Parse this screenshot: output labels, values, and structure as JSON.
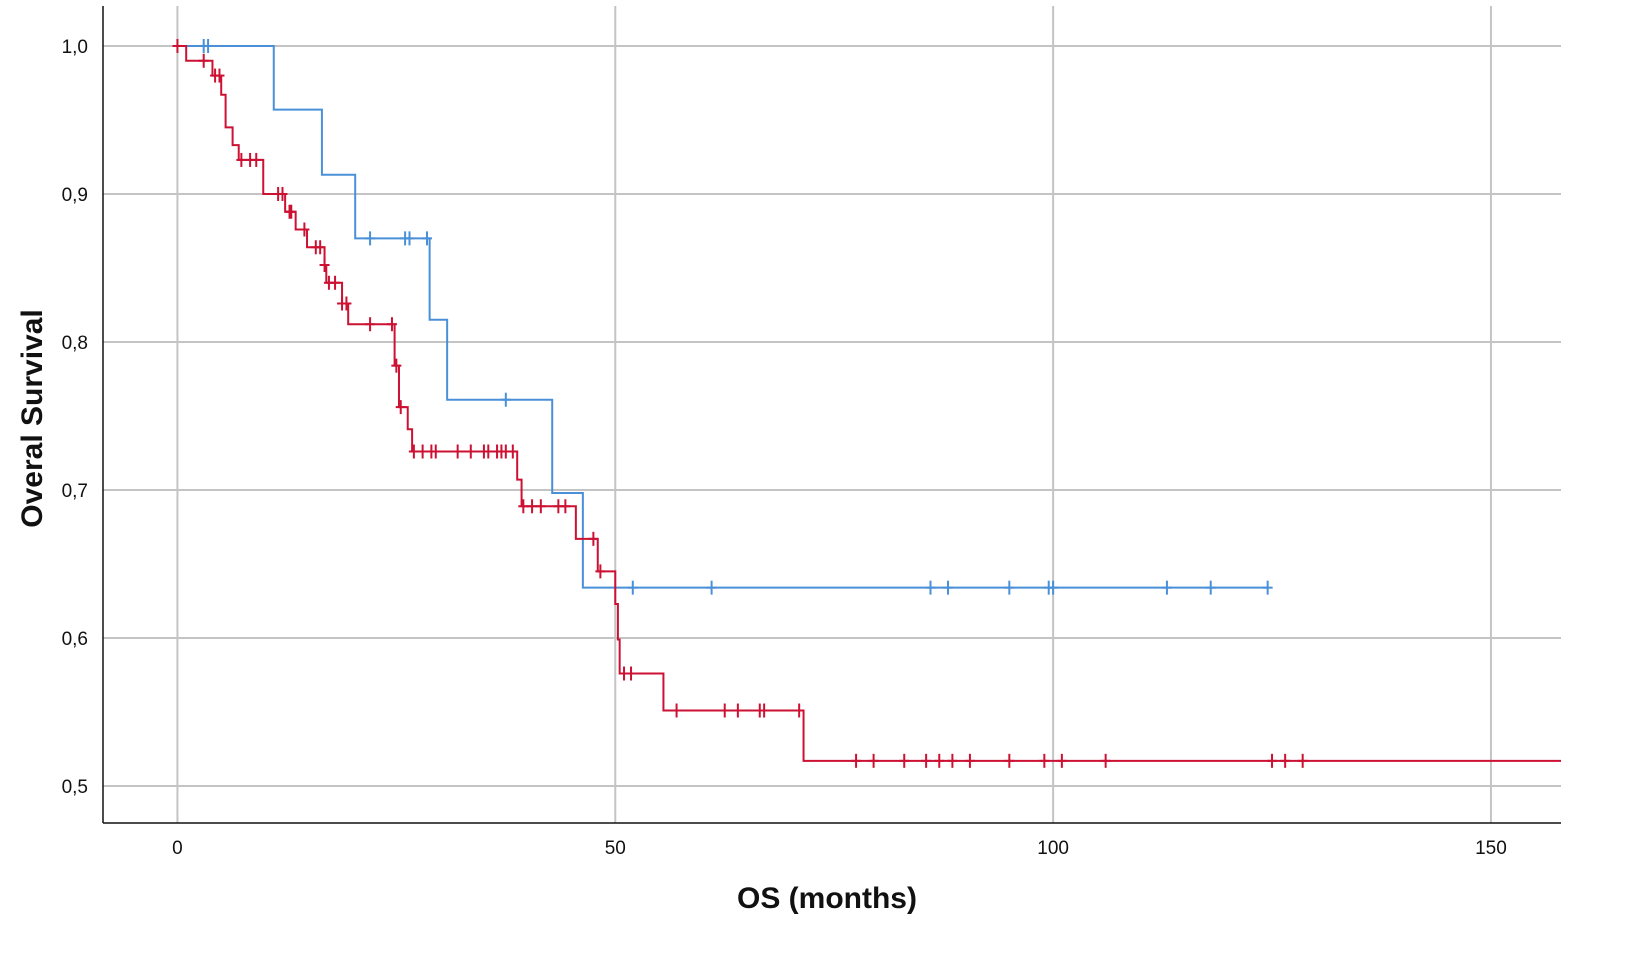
{
  "chart_data": {
    "type": "line",
    "subtype": "kaplan-meier",
    "title": "",
    "xlabel": "OS (months)",
    "ylabel": "Overal Survival",
    "xlim": [
      -8.5,
      158
    ],
    "ylim": [
      0.475,
      1.027
    ],
    "xticks": [
      0,
      50,
      100,
      150
    ],
    "xtick_labels": [
      "0",
      "50",
      "100",
      "150"
    ],
    "yticks": [
      0.5,
      0.6,
      0.7,
      0.8,
      0.9,
      1.0
    ],
    "ytick_labels": [
      "0,5",
      "0,6",
      "0,7",
      "0,8",
      "0,9",
      "1,0"
    ],
    "grid": true,
    "legend": "none",
    "colors": {
      "series_blue": "#4a90d9",
      "series_red": "#cc1133",
      "grid": "#c4c4c4",
      "axis": "#111111"
    },
    "series": [
      {
        "color": "#4a90d9",
        "steps": [
          [
            0,
            1.0
          ],
          [
            11,
            0.957
          ],
          [
            16.5,
            0.913
          ],
          [
            20.3,
            0.87
          ],
          [
            28.8,
            0.815
          ],
          [
            30.8,
            0.761
          ],
          [
            42.8,
            0.698
          ],
          [
            46.3,
            0.634
          ],
          [
            124.5,
            0.634
          ]
        ],
        "censored": [
          3,
          3.5,
          22,
          26,
          26.5,
          28.5,
          37.5,
          52,
          61,
          86,
          88,
          95,
          99.5,
          100,
          113,
          118,
          124.5
        ]
      },
      {
        "color": "#cc1133",
        "steps": [
          [
            0,
            1.0
          ],
          [
            1,
            0.99
          ],
          [
            4,
            0.98
          ],
          [
            5,
            0.967
          ],
          [
            5.5,
            0.945
          ],
          [
            6.3,
            0.933
          ],
          [
            7,
            0.923
          ],
          [
            9.8,
            0.9
          ],
          [
            12.3,
            0.888
          ],
          [
            13.5,
            0.876
          ],
          [
            14.8,
            0.864
          ],
          [
            16.8,
            0.852
          ],
          [
            17,
            0.84
          ],
          [
            18.8,
            0.826
          ],
          [
            19.5,
            0.812
          ],
          [
            24.8,
            0.784
          ],
          [
            25.3,
            0.756
          ],
          [
            26.3,
            0.741
          ],
          [
            26.8,
            0.726
          ],
          [
            38.8,
            0.707
          ],
          [
            39.3,
            0.689
          ],
          [
            45.5,
            0.667
          ],
          [
            48,
            0.645
          ],
          [
            50,
            0.623
          ],
          [
            50.3,
            0.599
          ],
          [
            50.5,
            0.576
          ],
          [
            55.5,
            0.551
          ],
          [
            71.5,
            0.517
          ],
          [
            158,
            0.517
          ]
        ],
        "censored": [
          0,
          3,
          4.3,
          4.8,
          7.3,
          8.3,
          9,
          11.5,
          12,
          12.8,
          13,
          14.5,
          15.8,
          16.3,
          16.8,
          17.3,
          18,
          18.8,
          19.3,
          22,
          24.5,
          25,
          25.5,
          27,
          28,
          29,
          29.5,
          32,
          33.5,
          35,
          35.5,
          36.5,
          37,
          37.5,
          38.3,
          39.5,
          40.5,
          41.5,
          43.5,
          44.3,
          47.5,
          48.3,
          51,
          51.8,
          57,
          62.5,
          64,
          66.5,
          67,
          71,
          77.5,
          79.5,
          83,
          85.5,
          87,
          88.5,
          90.5,
          95,
          99,
          101,
          106,
          125,
          126.5,
          128.5
        ]
      }
    ]
  }
}
